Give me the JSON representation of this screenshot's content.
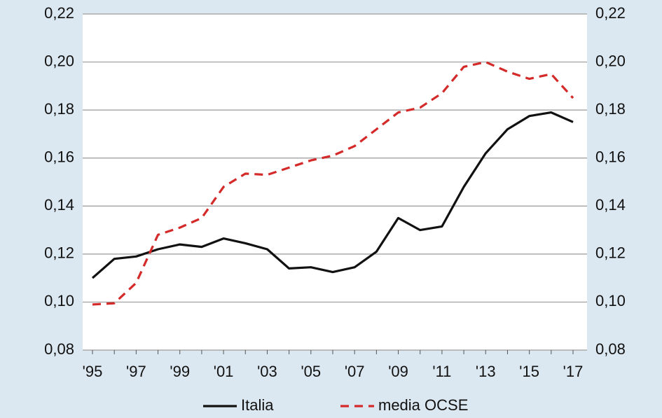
{
  "chart_data": {
    "type": "line",
    "categories": [
      "'95",
      null,
      "'97",
      null,
      "'99",
      null,
      "'01",
      null,
      "'03",
      null,
      "'05",
      null,
      "'07",
      null,
      "'09",
      null,
      "'11",
      null,
      "'13",
      null,
      "'15",
      null,
      "'17"
    ],
    "series": [
      {
        "name": "Italia",
        "color": "#111111",
        "dash": false,
        "values": [
          0.11,
          0.118,
          0.119,
          0.122,
          0.124,
          0.123,
          0.1265,
          0.1245,
          0.122,
          0.114,
          0.1145,
          0.1125,
          0.1145,
          0.121,
          0.135,
          0.13,
          0.1315,
          0.148,
          0.162,
          0.172,
          0.1775,
          0.179,
          0.175
        ]
      },
      {
        "name": "media OCSE",
        "color": "#d42a2a",
        "dash": true,
        "values": [
          0.099,
          0.0995,
          0.108,
          0.128,
          0.131,
          0.135,
          0.148,
          0.1535,
          0.153,
          0.156,
          0.159,
          0.161,
          0.165,
          0.172,
          0.179,
          0.181,
          0.187,
          0.198,
          0.2,
          0.196,
          0.193,
          0.195,
          0.185
        ]
      }
    ],
    "ylim": [
      0.08,
      0.22
    ],
    "yticks": [
      {
        "value": 0.08,
        "label": "0,08"
      },
      {
        "value": 0.1,
        "label": "0,10"
      },
      {
        "value": 0.12,
        "label": "0,12"
      },
      {
        "value": 0.14,
        "label": "0,14"
      },
      {
        "value": 0.16,
        "label": "0,16"
      },
      {
        "value": 0.18,
        "label": "0,18"
      },
      {
        "value": 0.2,
        "label": "0,20"
      },
      {
        "value": 0.22,
        "label": "0,22"
      }
    ],
    "y2lim": [
      0.08,
      0.22
    ],
    "y2ticks": [
      {
        "value": 0.08,
        "label": "0,08"
      },
      {
        "value": 0.1,
        "label": "0,10"
      },
      {
        "value": 0.12,
        "label": "0,12"
      },
      {
        "value": 0.14,
        "label": "0,14"
      },
      {
        "value": 0.16,
        "label": "0,16"
      },
      {
        "value": 0.18,
        "label": "0,18"
      },
      {
        "value": 0.2,
        "label": "0,20"
      },
      {
        "value": 0.22,
        "label": "0,22"
      }
    ],
    "grid": true,
    "legend": "bottom"
  }
}
